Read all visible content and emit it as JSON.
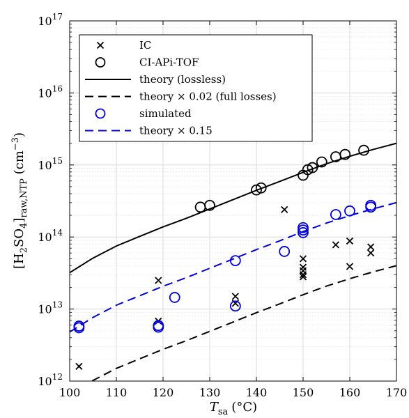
{
  "chart_data": {
    "type": "scatter",
    "xlabel": {
      "main": "T",
      "sub": "sa",
      "unit": "(°C)"
    },
    "ylabel": {
      "lead": "[H",
      "sub1": "2",
      "mid": "SO",
      "sub2": "4",
      "close": "]",
      "sub3": "raw,NTP",
      "unit_open": " (cm",
      "sup": "−3",
      "unit_close": ")"
    },
    "xlim": [
      100,
      170
    ],
    "ylim": [
      1000000000000.0,
      1e+17
    ],
    "yscale": "log",
    "grid": true,
    "legend_position": "top-left",
    "xticks": [
      100,
      110,
      120,
      130,
      140,
      150,
      160,
      170
    ],
    "xtick_labels": [
      "100",
      "110",
      "120",
      "130",
      "140",
      "150",
      "160",
      "170"
    ],
    "yticks": [
      {
        "value": 1000000000000.0,
        "base": "10",
        "exp": "12"
      },
      {
        "value": 10000000000000.0,
        "base": "10",
        "exp": "13"
      },
      {
        "value": 100000000000000.0,
        "base": "10",
        "exp": "14"
      },
      {
        "value": 1000000000000000.0,
        "base": "10",
        "exp": "15"
      },
      {
        "value": 1e+16,
        "base": "10",
        "exp": "16"
      },
      {
        "value": 1e+17,
        "base": "10",
        "exp": "17"
      }
    ],
    "colors": {
      "black": "#000000",
      "blue": "#0000dd",
      "grid": "#d8d8d8"
    },
    "series": [
      {
        "name": "IC",
        "kind": "scatter",
        "marker": "x",
        "color": "#000000",
        "points": [
          [
            102,
            1600000000000.0
          ],
          [
            119,
            25000000000000.0
          ],
          [
            119,
            6800000000000.0
          ],
          [
            135.5,
            15000000000000.0
          ],
          [
            135.5,
            12000000000000.0
          ],
          [
            146,
            240000000000000.0
          ],
          [
            150,
            50000000000000.0
          ],
          [
            150,
            38000000000000.0
          ],
          [
            150,
            34000000000000.0
          ],
          [
            150,
            30000000000000.0
          ],
          [
            150,
            28000000000000.0
          ],
          [
            157,
            78000000000000.0
          ],
          [
            160,
            88000000000000.0
          ],
          [
            160,
            39000000000000.0
          ],
          [
            164.5,
            73000000000000.0
          ],
          [
            164.5,
            60000000000000.0
          ]
        ]
      },
      {
        "name": "CI-APi-TOF",
        "kind": "scatter",
        "marker": "o",
        "color": "#000000",
        "points": [
          [
            128,
            260000000000000.0
          ],
          [
            130,
            275000000000000.0
          ],
          [
            140,
            450000000000000.0
          ],
          [
            141,
            480000000000000.0
          ],
          [
            150,
            720000000000000.0
          ],
          [
            151,
            860000000000000.0
          ],
          [
            152,
            920000000000000.0
          ],
          [
            154,
            1100000000000000.0
          ],
          [
            157,
            1300000000000000.0
          ],
          [
            159,
            1400000000000000.0
          ],
          [
            163,
            1600000000000000.0
          ]
        ]
      },
      {
        "name": "theory (lossless)",
        "kind": "line",
        "dash": "solid",
        "color": "#000000",
        "points": [
          [
            100,
            32000000000000.0
          ],
          [
            105,
            51000000000000.0
          ],
          [
            110,
            75000000000000.0
          ],
          [
            115,
            102000000000000.0
          ],
          [
            120,
            138000000000000.0
          ],
          [
            125,
            182000000000000.0
          ],
          [
            130,
            245000000000000.0
          ],
          [
            135,
            330000000000000.0
          ],
          [
            140,
            445000000000000.0
          ],
          [
            145,
            590000000000000.0
          ],
          [
            150,
            790000000000000.0
          ],
          [
            155,
            1040000000000000.0
          ],
          [
            160,
            1320000000000000.0
          ],
          [
            165,
            1640000000000000.0
          ],
          [
            170,
            2000000000000000.0
          ]
        ]
      },
      {
        "name": "theory ×0.02 (full losses)",
        "kind": "line",
        "dash": "dashed",
        "color": "#000000",
        "points": [
          [
            100,
            640000000000.0
          ],
          [
            105,
            1020000000000.0
          ],
          [
            110,
            1500000000000.0
          ],
          [
            115,
            2040000000000.0
          ],
          [
            120,
            2760000000000.0
          ],
          [
            125,
            3640000000000.0
          ],
          [
            130,
            4900000000000.0
          ],
          [
            135,
            6600000000000.0
          ],
          [
            140,
            8900000000000.0
          ],
          [
            145,
            11800000000000.0
          ],
          [
            150,
            15800000000000.0
          ],
          [
            155,
            20800000000000.0
          ],
          [
            160,
            26400000000000.0
          ],
          [
            165,
            32800000000000.0
          ],
          [
            170,
            40000000000000.0
          ]
        ]
      },
      {
        "name": "simulated",
        "kind": "scatter",
        "marker": "o",
        "color": "#0000dd",
        "points": [
          [
            102,
            5800000000000.0
          ],
          [
            102,
            5500000000000.0
          ],
          [
            119,
            5900000000000.0
          ],
          [
            119,
            5600000000000.0
          ],
          [
            122.5,
            14500000000000.0
          ],
          [
            135.5,
            47000000000000.0
          ],
          [
            135.5,
            11000000000000.0
          ],
          [
            146,
            63000000000000.0
          ],
          [
            150,
            135000000000000.0
          ],
          [
            150,
            125000000000000.0
          ],
          [
            150,
            115000000000000.0
          ],
          [
            157,
            205000000000000.0
          ],
          [
            160,
            230000000000000.0
          ],
          [
            164.5,
            275000000000000.0
          ],
          [
            164.5,
            260000000000000.0
          ]
        ]
      },
      {
        "name": "theory ×0.15",
        "kind": "line",
        "dash": "dashed",
        "color": "#0000dd",
        "points": [
          [
            100,
            4800000000000.0
          ],
          [
            105,
            7650000000000.0
          ],
          [
            110,
            11300000000000.0
          ],
          [
            115,
            15300000000000.0
          ],
          [
            120,
            20700000000000.0
          ],
          [
            125,
            27300000000000.0
          ],
          [
            130,
            36800000000000.0
          ],
          [
            135,
            49500000000000.0
          ],
          [
            140,
            66800000000000.0
          ],
          [
            145,
            88500000000000.0
          ],
          [
            150,
            119000000000000.0
          ],
          [
            155,
            156000000000000.0
          ],
          [
            160,
            198000000000000.0
          ],
          [
            165,
            246000000000000.0
          ],
          [
            170,
            300000000000000.0
          ]
        ]
      }
    ],
    "legend": [
      {
        "label": "IC",
        "symbol": "x",
        "color": "#000000"
      },
      {
        "label": "CI-APi-TOF",
        "symbol": "o",
        "color": "#000000"
      },
      {
        "label": "theory (lossless)",
        "symbol": "solid",
        "color": "#000000"
      },
      {
        "label": "theory × 0.02 (full losses)",
        "symbol": "dashed",
        "color": "#000000"
      },
      {
        "label": "simulated",
        "symbol": "o",
        "color": "#0000dd"
      },
      {
        "label": "theory × 0.15",
        "symbol": "dashed",
        "color": "#0000dd"
      }
    ]
  }
}
